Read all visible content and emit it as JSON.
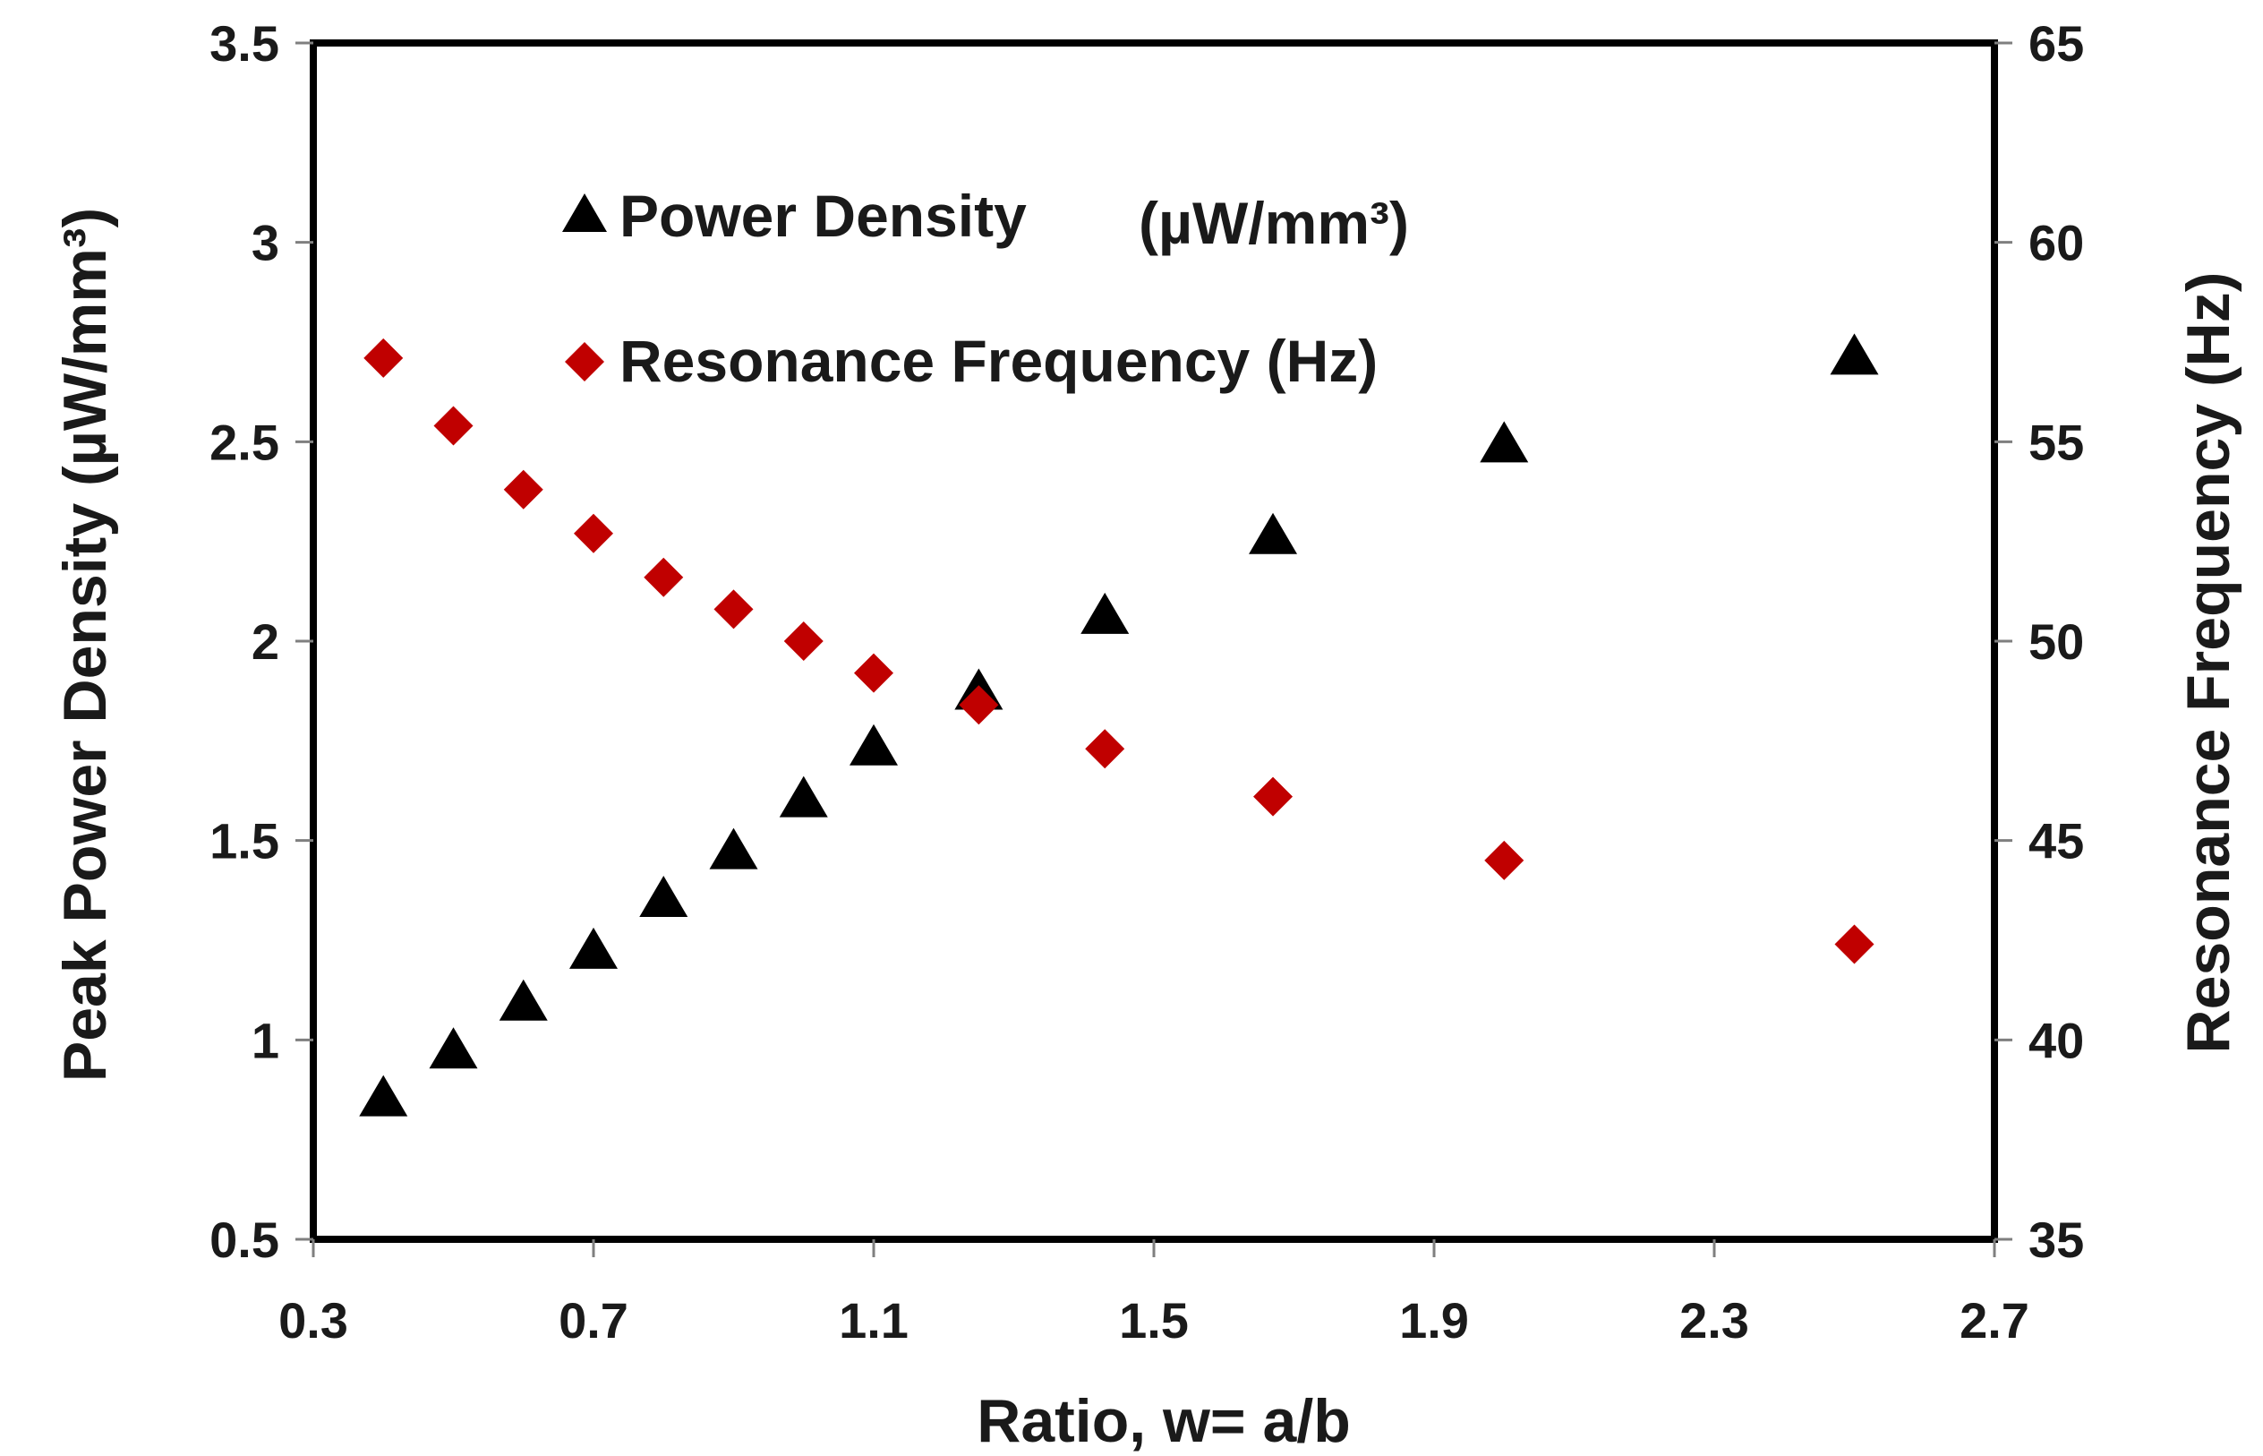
{
  "chart_data": {
    "type": "scatter",
    "title": "",
    "xlabel": "Ratio, w= a/b",
    "ylabel_left": "Peak Power Density (µW/mm³)",
    "ylabel_right": "Resonance Frequency  (Hz)",
    "xlim": [
      0.3,
      2.7
    ],
    "ylim_left": [
      0.5,
      3.5
    ],
    "ylim_right": [
      35,
      65
    ],
    "x_ticks": [
      "0.3",
      "0.7",
      "1.1",
      "1.5",
      "1.9",
      "2.3",
      "2.7"
    ],
    "y_left_ticks": [
      "0.5",
      "1",
      "1.5",
      "2",
      "2.5",
      "3",
      "3.5"
    ],
    "y_right_ticks": [
      "35",
      "40",
      "45",
      "50",
      "55",
      "60",
      "65"
    ],
    "grid": false,
    "legend_position": "top-center",
    "series": [
      {
        "name": "Power Density",
        "legend_unit": "(µW/mm³)",
        "axis": "left",
        "marker": "triangle",
        "color": "#000000",
        "x": [
          0.4,
          0.5,
          0.6,
          0.7,
          0.8,
          0.9,
          1.0,
          1.1,
          1.25,
          1.43,
          1.67,
          2.0,
          2.5
        ],
        "y": [
          0.86,
          0.98,
          1.1,
          1.23,
          1.36,
          1.48,
          1.61,
          1.74,
          1.88,
          2.07,
          2.27,
          2.5,
          2.72
        ]
      },
      {
        "name": "Resonance Frequency (Hz)",
        "axis": "right",
        "marker": "diamond",
        "color": "#c00000",
        "x": [
          0.4,
          0.5,
          0.6,
          0.7,
          0.8,
          0.9,
          1.0,
          1.1,
          1.25,
          1.43,
          1.67,
          2.0,
          2.5
        ],
        "y": [
          57.1,
          55.4,
          53.8,
          52.7,
          51.6,
          50.8,
          50.0,
          49.2,
          48.4,
          47.3,
          46.1,
          44.5,
          42.4
        ]
      }
    ]
  }
}
